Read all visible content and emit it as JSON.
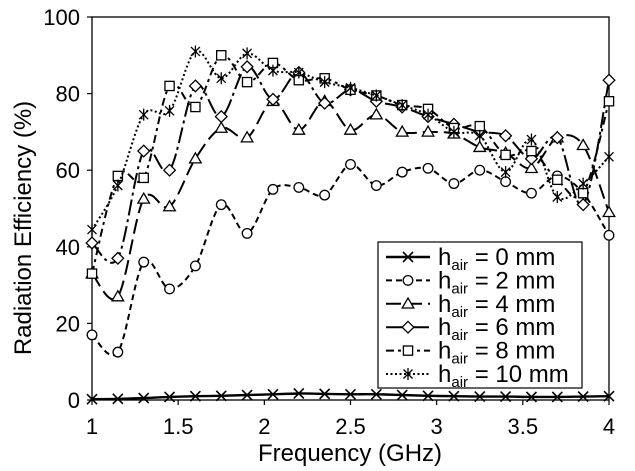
{
  "chart_data": {
    "type": "line",
    "xlabel": "Frequency (GHz)",
    "ylabel": "Radiation Efficiency (%)",
    "xlim": [
      1,
      4
    ],
    "ylim": [
      0,
      100
    ],
    "xticks": [
      "1",
      "1.5",
      "2",
      "2.5",
      "3",
      "3.5",
      "4"
    ],
    "yticks": [
      "0",
      "20",
      "40",
      "60",
      "80",
      "100"
    ],
    "grid": false,
    "smooth": true,
    "legend_position": "bottom-right",
    "x": [
      1,
      1.15,
      1.3,
      1.45,
      1.6,
      1.75,
      1.9,
      2.05,
      2.2,
      2.35,
      2.5,
      2.65,
      2.8,
      2.95,
      3.1,
      3.25,
      3.4,
      3.55,
      3.7,
      3.85,
      4
    ],
    "series": [
      {
        "name": {
          "main": "h",
          "sub": "air",
          "rest": " = 0 mm"
        },
        "marker": "x",
        "line_style": "solid",
        "color": "#000000",
        "values": [
          0.2,
          0.3,
          0.5,
          0.8,
          1.0,
          1.1,
          1.3,
          1.5,
          1.7,
          1.6,
          1.5,
          1.5,
          1.3,
          1.1,
          1.0,
          0.9,
          0.9,
          0.8,
          0.8,
          0.9,
          1.0
        ]
      },
      {
        "name": {
          "main": "h",
          "sub": "air",
          "rest": " = 2 mm"
        },
        "marker": "circle",
        "line_style": "dashed",
        "color": "#000000",
        "values": [
          17,
          12.5,
          36,
          29,
          35,
          51,
          43.5,
          55,
          55.5,
          53.5,
          61.5,
          56,
          59.5,
          60.5,
          56.5,
          60,
          57,
          54,
          58.5,
          54,
          43
        ]
      },
      {
        "name": {
          "main": "h",
          "sub": "air",
          "rest": " = 4 mm"
        },
        "marker": "triangle",
        "line_style": "longdash",
        "color": "#000000",
        "values": [
          33,
          27,
          52.5,
          50.5,
          63,
          71,
          68.5,
          78,
          70.5,
          78,
          70.5,
          74.5,
          70,
          70,
          69.5,
          66,
          64.5,
          60.5,
          68.5,
          66.5,
          49
        ]
      },
      {
        "name": {
          "main": "h",
          "sub": "air",
          "rest": " = 6 mm"
        },
        "marker": "diamond",
        "line_style": "longdashdot",
        "color": "#000000",
        "values": [
          41,
          37,
          65,
          60,
          82,
          74,
          87,
          78.5,
          85.5,
          77.5,
          81,
          78,
          76.5,
          74,
          72,
          70,
          69,
          63,
          68.5,
          51,
          83.5
        ]
      },
      {
        "name": {
          "main": "h",
          "sub": "air",
          "rest": " = 8 mm"
        },
        "marker": "square",
        "line_style": "dashdot",
        "color": "#000000",
        "values": [
          33,
          58.5,
          58,
          82,
          76.5,
          90,
          83,
          88,
          83.5,
          84,
          81,
          79.5,
          77,
          76,
          71,
          71.5,
          64,
          65,
          57.5,
          54,
          78
        ]
      },
      {
        "name": {
          "main": "h",
          "sub": "air",
          "rest": " = 10 mm"
        },
        "marker": "asterisk",
        "line_style": "dotted",
        "color": "#000000",
        "values": [
          44.5,
          56,
          74.5,
          75.5,
          91,
          84,
          90.5,
          86,
          85.5,
          83,
          81.5,
          79.5,
          77,
          74.5,
          70,
          69,
          59.5,
          68,
          53,
          56.5,
          63.5
        ]
      }
    ]
  }
}
